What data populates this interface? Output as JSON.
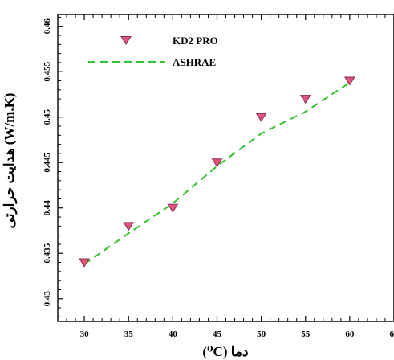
{
  "chart_data": {
    "type": "scatter",
    "xlabel": "دما (⁰C)",
    "ylabel": "هدایت حرارتی (W/m.K)",
    "xlim": [
      27,
      65
    ],
    "ylim": [
      0.4275,
      0.4613
    ],
    "x_ticks": [
      "30",
      "35",
      "40",
      "45",
      "50",
      "55",
      "60",
      "65"
    ],
    "y_ticks": [
      "0.43",
      "0.435",
      "0.44",
      "0.445",
      "0.45",
      "0.455",
      "0.46"
    ],
    "legend_position": "top-left",
    "series": [
      {
        "name": "KD2 PRO",
        "style": "markers",
        "marker": "triangle-down",
        "color": "#e0557c",
        "x": [
          30,
          35,
          40,
          45,
          50,
          55,
          60
        ],
        "y": [
          0.434,
          0.438,
          0.44,
          0.445,
          0.45,
          0.452,
          0.454
        ]
      },
      {
        "name": "ASHRAE",
        "style": "dashed-line",
        "color": "#35c22f",
        "x": [
          30,
          35,
          40,
          45,
          50,
          55,
          60
        ],
        "y": [
          0.4338,
          0.4372,
          0.4405,
          0.4446,
          0.4482,
          0.4506,
          0.4538
        ]
      }
    ]
  }
}
